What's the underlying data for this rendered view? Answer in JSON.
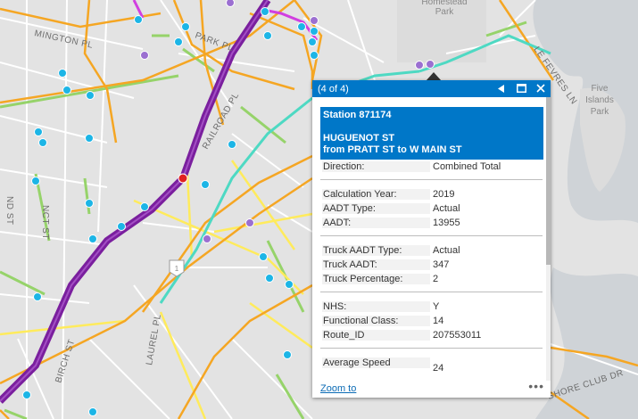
{
  "map": {
    "labels": {
      "mington_pl": "MINGTON PL",
      "park_pl": "PARK PL",
      "railroad_pl": "RAILROAD PL",
      "nd_st": "ND ST",
      "nct_st": "NCT ST",
      "laurel_pl": "LAUREL PL",
      "birch_st": "BIRCH ST",
      "le_fevres_ln": "LE FEVRES LN",
      "shore_club_dr": "SHORE CLUB DR",
      "homestead_park": [
        "Homestead",
        "Park"
      ],
      "five_islands_park": [
        "Five",
        "Islands",
        "Park"
      ],
      "route_number": "1"
    },
    "colors": {
      "interstate": "#7a1f9e",
      "primary_road": "#f5a623",
      "secondary_road": "#ffeb5c",
      "local_green": "#96d36a",
      "teal_route": "#4ed9c3",
      "magenta_route": "#d13fe0",
      "water": "#cfd3d7",
      "station_blue": "#1cb5e6",
      "station_purple": "#9b6fd1",
      "station_selected": "#e02020"
    }
  },
  "popup": {
    "counter": "(4 of 4)",
    "controls": {
      "prev_icon": "triangle-left-icon",
      "maximize_icon": "maximize-icon",
      "close_icon": "close-icon"
    },
    "title_lines": [
      "Station 871174",
      "",
      "HUGUENOT ST",
      "from PRATT ST to W MAIN ST"
    ],
    "direction": {
      "label": "Direction:",
      "value": "Combined Total"
    },
    "groups": [
      [
        {
          "label": "Calculation Year:",
          "value": "2019"
        },
        {
          "label": "AADT Type:",
          "value": "Actual"
        },
        {
          "label": "AADT:",
          "value": "13955"
        }
      ],
      [
        {
          "label": "Truck AADT Type:",
          "value": "Actual"
        },
        {
          "label": "Truck AADT:",
          "value": "347"
        },
        {
          "label": "Truck Percentage:",
          "value": "2"
        }
      ],
      [
        {
          "label": "NHS:",
          "value": "Y"
        },
        {
          "label": "Functional Class:",
          "value": "14"
        },
        {
          "label": "Route_ID",
          "value": "207553011"
        }
      ],
      [
        {
          "label": "Average Speed",
          "value": "24"
        }
      ]
    ],
    "footer": {
      "zoom_to": "Zoom to",
      "more": "•••"
    }
  }
}
